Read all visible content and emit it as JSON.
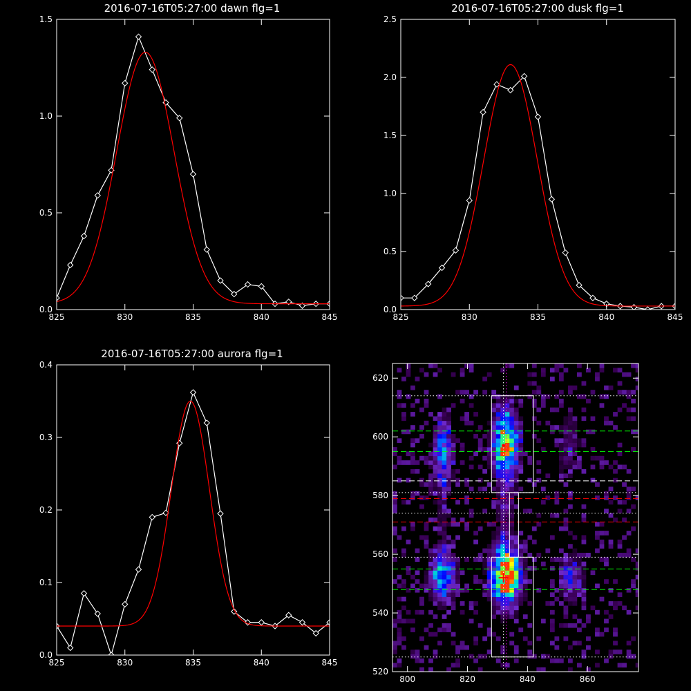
{
  "chart_data": [
    {
      "type": "line",
      "title": "2016-07-16T05:27:00 dawn flg=1",
      "xlim": [
        825,
        845
      ],
      "ylim": [
        0,
        1.5
      ],
      "xticks": [
        825,
        830,
        835,
        840,
        845
      ],
      "yticks": [
        0.0,
        0.5,
        1.0,
        1.5
      ],
      "ytick_labels": [
        "0.0",
        "0.5",
        "1.0",
        "1.5"
      ],
      "series": [
        {
          "color": "#ffffff",
          "marker": "diamond",
          "x": [
            825,
            826,
            827,
            828,
            829,
            830,
            831,
            832,
            833,
            834,
            835,
            836,
            837,
            838,
            839,
            840,
            841,
            842,
            843,
            844,
            845
          ],
          "y": [
            0.06,
            0.23,
            0.38,
            0.59,
            0.72,
            1.17,
            1.41,
            1.24,
            1.07,
            0.99,
            0.7,
            0.31,
            0.15,
            0.08,
            0.13,
            0.12,
            0.03,
            0.04,
            0.02,
            0.03,
            0.03
          ]
        },
        {
          "color": "#ff0000",
          "fit": "gaussian",
          "amp": 1.3,
          "center": 831.5,
          "sigma": 2.1,
          "offset": 0.03
        }
      ]
    },
    {
      "type": "line",
      "title": "2016-07-16T05:27:00 dusk flg=1",
      "xlim": [
        825,
        845
      ],
      "ylim": [
        0,
        2.5
      ],
      "xticks": [
        825,
        830,
        835,
        840,
        845
      ],
      "yticks": [
        0.0,
        0.5,
        1.0,
        1.5,
        2.0,
        2.5
      ],
      "ytick_labels": [
        "0.0",
        "0.5",
        "1.0",
        "1.5",
        "2.0",
        "2.5"
      ],
      "series": [
        {
          "color": "#ffffff",
          "marker": "diamond",
          "x": [
            825,
            826,
            827,
            828,
            829,
            830,
            831,
            832,
            833,
            834,
            835,
            836,
            837,
            838,
            839,
            840,
            841,
            842,
            843,
            844,
            845
          ],
          "y": [
            0.1,
            0.1,
            0.22,
            0.36,
            0.51,
            0.94,
            1.7,
            1.94,
            1.89,
            2.01,
            1.66,
            0.95,
            0.49,
            0.21,
            0.1,
            0.05,
            0.03,
            0.02,
            0.0,
            0.03,
            0.03
          ]
        },
        {
          "color": "#ff0000",
          "fit": "gaussian",
          "amp": 2.08,
          "center": 833.0,
          "sigma": 1.95,
          "offset": 0.03
        }
      ]
    },
    {
      "type": "line",
      "title": "2016-07-16T05:27:00 aurora flg=1",
      "xlim": [
        825,
        845
      ],
      "ylim": [
        0,
        0.4
      ],
      "xticks": [
        825,
        830,
        835,
        840,
        845
      ],
      "yticks": [
        0.0,
        0.1,
        0.2,
        0.3,
        0.4
      ],
      "ytick_labels": [
        "0.0",
        "0.1",
        "0.2",
        "0.3",
        "0.4"
      ],
      "series": [
        {
          "color": "#ffffff",
          "marker": "diamond",
          "x": [
            825,
            826,
            827,
            828,
            829,
            830,
            831,
            832,
            833,
            834,
            835,
            836,
            837,
            838,
            839,
            840,
            841,
            842,
            843,
            844,
            845
          ],
          "y": [
            0.04,
            0.01,
            0.085,
            0.057,
            0.0,
            0.07,
            0.118,
            0.19,
            0.196,
            0.292,
            0.362,
            0.32,
            0.195,
            0.06,
            0.045,
            0.045,
            0.04,
            0.055,
            0.045,
            0.03,
            0.045
          ]
        },
        {
          "color": "#ff0000",
          "fit": "gaussian",
          "amp": 0.31,
          "center": 834.8,
          "sigma": 1.4,
          "offset": 0.04
        }
      ]
    },
    {
      "type": "heatmap",
      "xlim": [
        795,
        877
      ],
      "ylim": [
        520,
        625
      ],
      "xticks": [
        800,
        820,
        840,
        860
      ],
      "yticks": [
        520,
        540,
        560,
        580,
        600,
        620
      ],
      "blobs": [
        {
          "x": 832,
          "y": 597,
          "sx": 2.5,
          "sy": 7,
          "amp": 1.0
        },
        {
          "x": 832,
          "y": 552,
          "sx": 3.0,
          "sy": 6,
          "amp": 1.15
        },
        {
          "x": 811,
          "y": 594,
          "sx": 2.0,
          "sy": 7,
          "amp": 0.45
        },
        {
          "x": 811,
          "y": 552,
          "sx": 2.5,
          "sy": 5,
          "amp": 0.6
        },
        {
          "x": 853,
          "y": 596,
          "sx": 2.5,
          "sy": 8,
          "amp": 0.12
        },
        {
          "x": 854,
          "y": 551,
          "sx": 2.5,
          "sy": 5,
          "amp": 0.25
        },
        {
          "x": 832,
          "y": 574,
          "sx": 2.0,
          "sy": 10,
          "amp": 0.12
        },
        {
          "x": 811,
          "y": 572,
          "sx": 2.0,
          "sy": 10,
          "amp": 0.08
        }
      ],
      "boxes": [
        {
          "x0": 828,
          "x1": 842,
          "y0": 581,
          "y1": 614
        },
        {
          "x0": 828,
          "x1": 842,
          "y0": 525,
          "y1": 559
        },
        {
          "x0": 834,
          "x1": 837,
          "y0": 559,
          "y1": 581
        }
      ],
      "hlines": [
        {
          "y": 614,
          "color": "#ffffff",
          "style": "dotted"
        },
        {
          "y": 602,
          "color": "#00ff00",
          "style": "dashed"
        },
        {
          "y": 595,
          "color": "#00ff00",
          "style": "dashed"
        },
        {
          "y": 585,
          "color": "#ffffff",
          "style": "dashed"
        },
        {
          "y": 581,
          "color": "#ffffff",
          "style": "dotted"
        },
        {
          "y": 579,
          "color": "#ff0000",
          "style": "dashed"
        },
        {
          "y": 574,
          "color": "#ffffff",
          "style": "dotted"
        },
        {
          "y": 571,
          "color": "#ff0000",
          "style": "dashed"
        },
        {
          "y": 559,
          "color": "#ffffff",
          "style": "dotted"
        },
        {
          "y": 555,
          "color": "#00ff00",
          "style": "dashed"
        },
        {
          "y": 548,
          "color": "#00ff00",
          "style": "dashed"
        },
        {
          "y": 525,
          "color": "#ffffff",
          "style": "dotted"
        }
      ],
      "vlines": [
        {
          "x": 832,
          "color": "#ffffff",
          "style": "dotted"
        },
        {
          "x": 833,
          "color": "#ff00ff",
          "style": "dotted"
        }
      ],
      "markers": [
        {
          "x": 832,
          "y": 552,
          "color": "#ff0000",
          "symbol": "plus"
        },
        {
          "x": 832,
          "y": 597,
          "color": "#ff0000",
          "symbol": "dot"
        }
      ]
    }
  ]
}
